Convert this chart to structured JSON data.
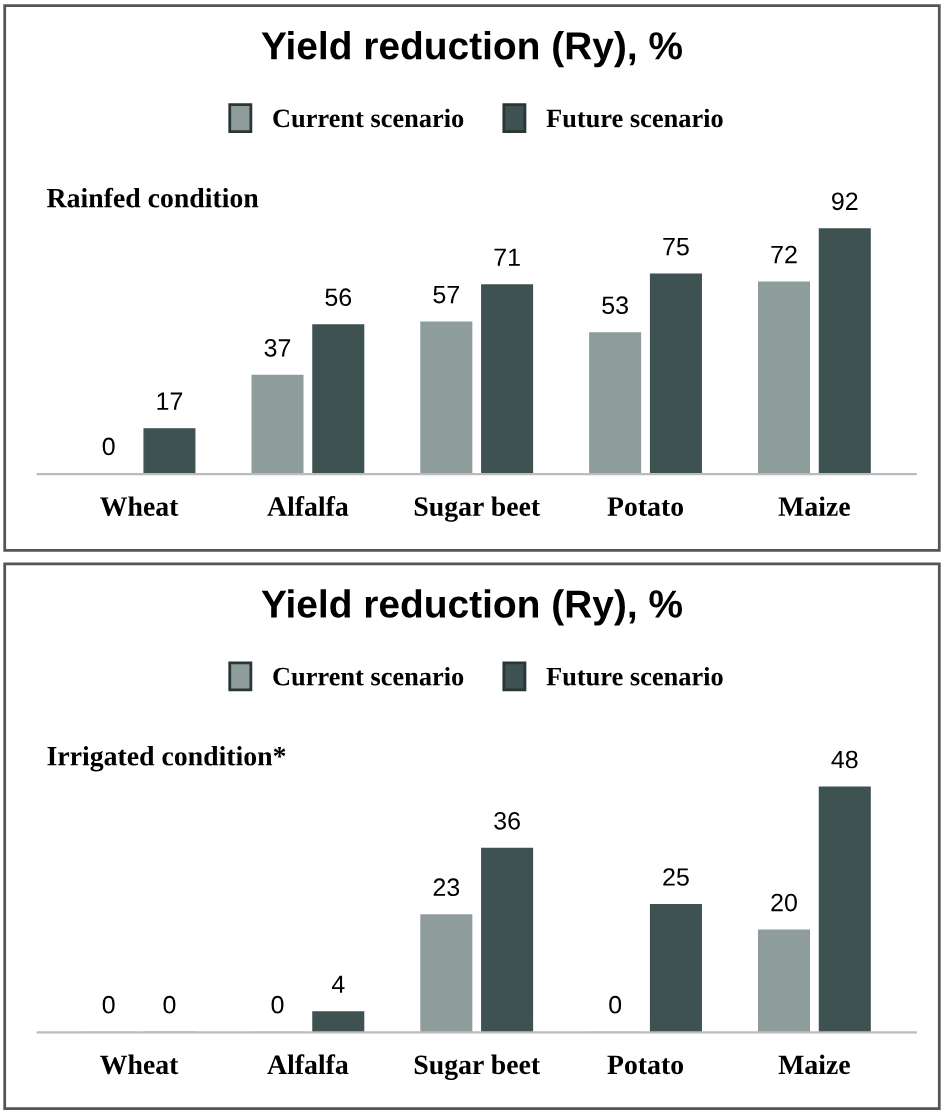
{
  "chart_data": [
    {
      "type": "bar",
      "title": "Yield reduction (Ry), %",
      "categories": [
        "Wheat",
        "Alfalfa",
        "Sugar beet",
        "Potato",
        "Maize"
      ],
      "series": [
        {
          "name": "Current scenario",
          "color": "#8e9c9c",
          "values": [
            0,
            37,
            57,
            53,
            72
          ]
        },
        {
          "name": "Future scenario",
          "color": "#3f5252",
          "values": [
            17,
            56,
            71,
            75,
            92
          ]
        }
      ],
      "annotations": [
        "Rainfed condition"
      ],
      "data_labels": true,
      "legend": "top",
      "tick_labels": "x",
      "grid": false
    },
    {
      "type": "bar",
      "title": "Yield reduction (Ry), %",
      "categories": [
        "Wheat",
        "Alfalfa",
        "Sugar beet",
        "Potato",
        "Maize"
      ],
      "series": [
        {
          "name": "Current scenario",
          "color": "#8e9c9c",
          "values": [
            0,
            0,
            23,
            0,
            20
          ]
        },
        {
          "name": "Future scenario",
          "color": "#3f5252",
          "values": [
            0,
            4,
            36,
            25,
            48
          ]
        }
      ],
      "annotations": [
        "Irrigated condition*"
      ],
      "data_labels": true,
      "legend": "top",
      "tick_labels": "x",
      "grid": false
    }
  ]
}
